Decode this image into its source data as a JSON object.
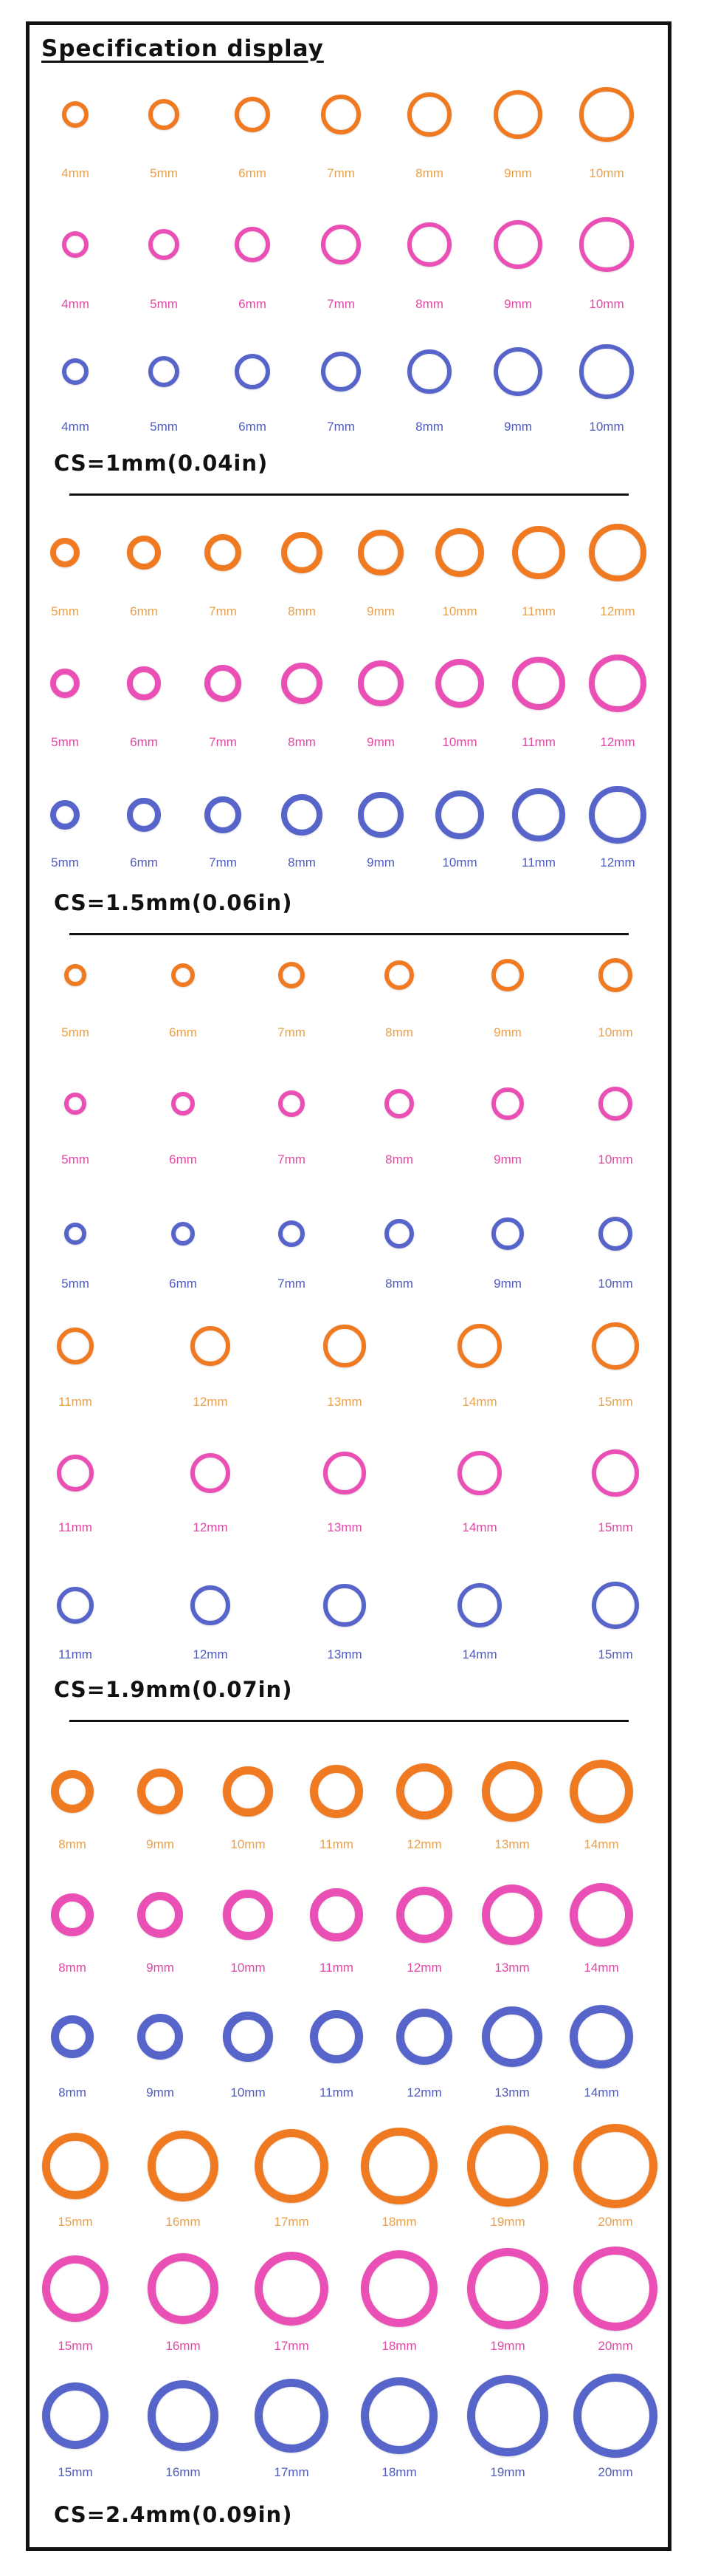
{
  "title": "Specification display",
  "colors": {
    "orange": "#ef7a22",
    "pink": "#e94fb5",
    "blue": "#5764c9"
  },
  "label_colors": {
    "orange": "#e9a04a",
    "pink": "#e049a6",
    "blue": "#4f5bbd"
  },
  "sections": [
    {
      "cs_label": "CS=1mm(0.04in)",
      "cross_section_mm": 1,
      "rows": [
        {
          "color": "orange",
          "sizes": [
            "4mm",
            "5mm",
            "6mm",
            "7mm",
            "8mm",
            "9mm",
            "10mm"
          ]
        },
        {
          "color": "pink",
          "sizes": [
            "4mm",
            "5mm",
            "6mm",
            "7mm",
            "8mm",
            "9mm",
            "10mm"
          ]
        },
        {
          "color": "blue",
          "sizes": [
            "4mm",
            "5mm",
            "6mm",
            "7mm",
            "8mm",
            "9mm",
            "10mm"
          ]
        }
      ]
    },
    {
      "cs_label": "CS=1.5mm(0.06in)",
      "cross_section_mm": 1.5,
      "rows": [
        {
          "color": "orange",
          "sizes": [
            "5mm",
            "6mm",
            "7mm",
            "8mm",
            "9mm",
            "10mm",
            "11mm",
            "12mm"
          ]
        },
        {
          "color": "pink",
          "sizes": [
            "5mm",
            "6mm",
            "7mm",
            "8mm",
            "9mm",
            "10mm",
            "11mm",
            "12mm"
          ]
        },
        {
          "color": "blue",
          "sizes": [
            "5mm",
            "6mm",
            "7mm",
            "8mm",
            "9mm",
            "10mm",
            "11mm",
            "12mm"
          ]
        }
      ]
    },
    {
      "cs_label": "CS=1.9mm(0.07in)",
      "cross_section_mm": 1.9,
      "rows": [
        {
          "color": "orange",
          "sizes": [
            "5mm",
            "6mm",
            "7mm",
            "8mm",
            "9mm",
            "10mm"
          ]
        },
        {
          "color": "pink",
          "sizes": [
            "5mm",
            "6mm",
            "7mm",
            "8mm",
            "9mm",
            "10mm"
          ]
        },
        {
          "color": "blue",
          "sizes": [
            "5mm",
            "6mm",
            "7mm",
            "8mm",
            "9mm",
            "10mm"
          ]
        },
        {
          "color": "orange",
          "sizes": [
            "11mm",
            "12mm",
            "13mm",
            "14mm",
            "15mm"
          ]
        },
        {
          "color": "pink",
          "sizes": [
            "11mm",
            "12mm",
            "13mm",
            "14mm",
            "15mm"
          ]
        },
        {
          "color": "blue",
          "sizes": [
            "11mm",
            "12mm",
            "13mm",
            "14mm",
            "15mm"
          ]
        }
      ]
    },
    {
      "cs_label": "CS=2.4mm(0.09in)",
      "cross_section_mm": 2.4,
      "rows": [
        {
          "color": "orange",
          "sizes": [
            "8mm",
            "9mm",
            "10mm",
            "11mm",
            "12mm",
            "13mm",
            "14mm"
          ]
        },
        {
          "color": "pink",
          "sizes": [
            "8mm",
            "9mm",
            "10mm",
            "11mm",
            "12mm",
            "13mm",
            "14mm"
          ]
        },
        {
          "color": "blue",
          "sizes": [
            "8mm",
            "9mm",
            "10mm",
            "11mm",
            "12mm",
            "13mm",
            "14mm"
          ]
        },
        {
          "color": "orange",
          "sizes": [
            "15mm",
            "16mm",
            "17mm",
            "18mm",
            "19mm",
            "20mm"
          ]
        },
        {
          "color": "pink",
          "sizes": [
            "15mm",
            "16mm",
            "17mm",
            "18mm",
            "19mm",
            "20mm"
          ]
        },
        {
          "color": "blue",
          "sizes": [
            "15mm",
            "16mm",
            "17mm",
            "18mm",
            "19mm",
            "20mm"
          ]
        }
      ]
    }
  ]
}
